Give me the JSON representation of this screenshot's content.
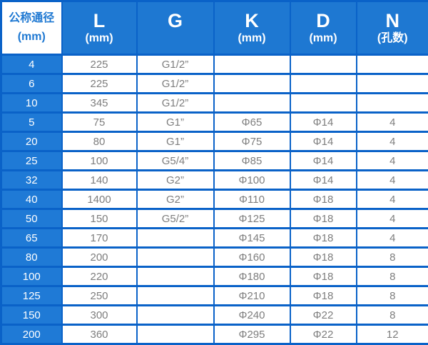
{
  "chart_data": {
    "type": "table",
    "corner_header": {
      "title": "公称通径",
      "unit": "(mm)"
    },
    "columns": [
      {
        "title": "L",
        "unit": "(mm)"
      },
      {
        "title": "G",
        "unit": ""
      },
      {
        "title": "K",
        "unit": "(mm)"
      },
      {
        "title": "D",
        "unit": "(mm)"
      },
      {
        "title": "N",
        "unit": "(孔数)"
      }
    ],
    "rows": [
      [
        "4",
        "225",
        "G1/2”",
        "",
        "",
        ""
      ],
      [
        "6",
        "225",
        "G1/2”",
        "",
        "",
        ""
      ],
      [
        "10",
        "345",
        "G1/2”",
        "",
        "",
        ""
      ],
      [
        "5",
        "75",
        "G1”",
        "Φ65",
        "Φ14",
        "4"
      ],
      [
        "20",
        "80",
        "G1”",
        "Φ75",
        "Φ14",
        "4"
      ],
      [
        "25",
        "100",
        "G5/4”",
        "Φ85",
        "Φ14",
        "4"
      ],
      [
        "32",
        "140",
        "G2”",
        "Φ100",
        "Φ14",
        "4"
      ],
      [
        "40",
        "1400",
        "G2”",
        "Φ110",
        "Φ18",
        "4"
      ],
      [
        "50",
        "150",
        "G5/2”",
        "Φ125",
        "Φ18",
        "4"
      ],
      [
        "65",
        "170",
        "",
        "Φ145",
        "Φ18",
        "4"
      ],
      [
        "80",
        "200",
        "",
        "Φ160",
        "Φ18",
        "8"
      ],
      [
        "100",
        "220",
        "",
        "Φ180",
        "Φ18",
        "8"
      ],
      [
        "125",
        "250",
        "",
        "Φ210",
        "Φ18",
        "8"
      ],
      [
        "150",
        "300",
        "",
        "Φ240",
        "Φ22",
        "8"
      ],
      [
        "200",
        "360",
        "",
        "Φ295",
        "Φ22",
        "12"
      ]
    ]
  },
  "colors": {
    "header_fill": "#1e78d2",
    "row_header_fill": "#1f7ad6",
    "grid_line": "#0a62c8",
    "data_text": "#7e7e7e",
    "header_text": "#ffffff",
    "corner_text": "#1e78d2",
    "cell_fill": "#ffffff"
  }
}
